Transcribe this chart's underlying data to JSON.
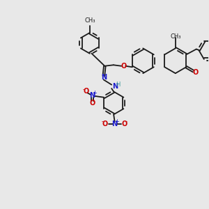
{
  "bg_color": "#e8e8e8",
  "figsize": [
    3.0,
    3.0
  ],
  "dpi": 100,
  "bond_color": "#1a1a1a",
  "bond_lw": 1.3,
  "atom_colors": {
    "O": "#cc0000",
    "N": "#1a1acc",
    "H": "#3a9a9a",
    "C": "#1a1a1a"
  },
  "font_size": 7.0,
  "font_size_small": 6.0,
  "font_size_tiny": 5.0
}
